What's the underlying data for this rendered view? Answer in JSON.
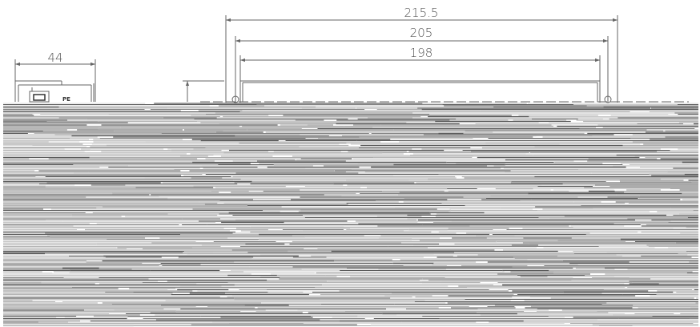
{
  "dimensions": {
    "overall_width": "215.5",
    "mounting_width": "205",
    "body_width": "198",
    "side_width": "44"
  },
  "side_view": {
    "terminal_label": "PE"
  },
  "colors": {
    "line": "#666666",
    "text": "#555555",
    "hatch_dark": "#5a5a5a",
    "hatch_light": "#b5b5b5",
    "background": "#ffffff"
  }
}
